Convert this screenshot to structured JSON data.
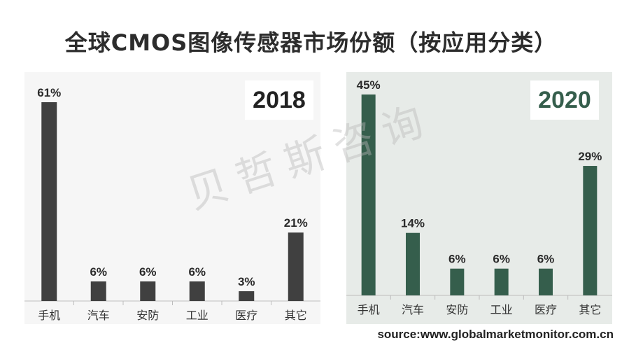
{
  "title": "全球CMOS图像传感器市场份额（按应用分类）",
  "watermark": "贝哲斯咨询",
  "source": "source:www.globalmarketmonitor.com.cn",
  "colors": {
    "left_bar": "#404040",
    "right_bar": "#355e4c",
    "left_bg": "#f6f6f6",
    "right_bg": "#e7ebe8",
    "year_2020": "#355e4c",
    "year_2018": "#222222"
  },
  "chart_data": [
    {
      "type": "bar",
      "year": "2018",
      "categories": [
        "手机",
        "汽车",
        "安防",
        "工业",
        "医疗",
        "其它"
      ],
      "values": [
        61,
        6,
        6,
        6,
        3,
        21
      ],
      "labels": [
        "61%",
        "6%",
        "6%",
        "6%",
        "3%",
        "21%"
      ],
      "ylim": [
        0,
        61
      ],
      "grid": false,
      "legend": false
    },
    {
      "type": "bar",
      "year": "2020",
      "categories": [
        "手机",
        "汽车",
        "安防",
        "工业",
        "医疗",
        "其它"
      ],
      "values": [
        45,
        14,
        6,
        6,
        6,
        29
      ],
      "labels": [
        "45%",
        "14%",
        "6%",
        "6%",
        "6%",
        "29%"
      ],
      "ylim": [
        0,
        45
      ],
      "grid": false,
      "legend": false
    }
  ]
}
